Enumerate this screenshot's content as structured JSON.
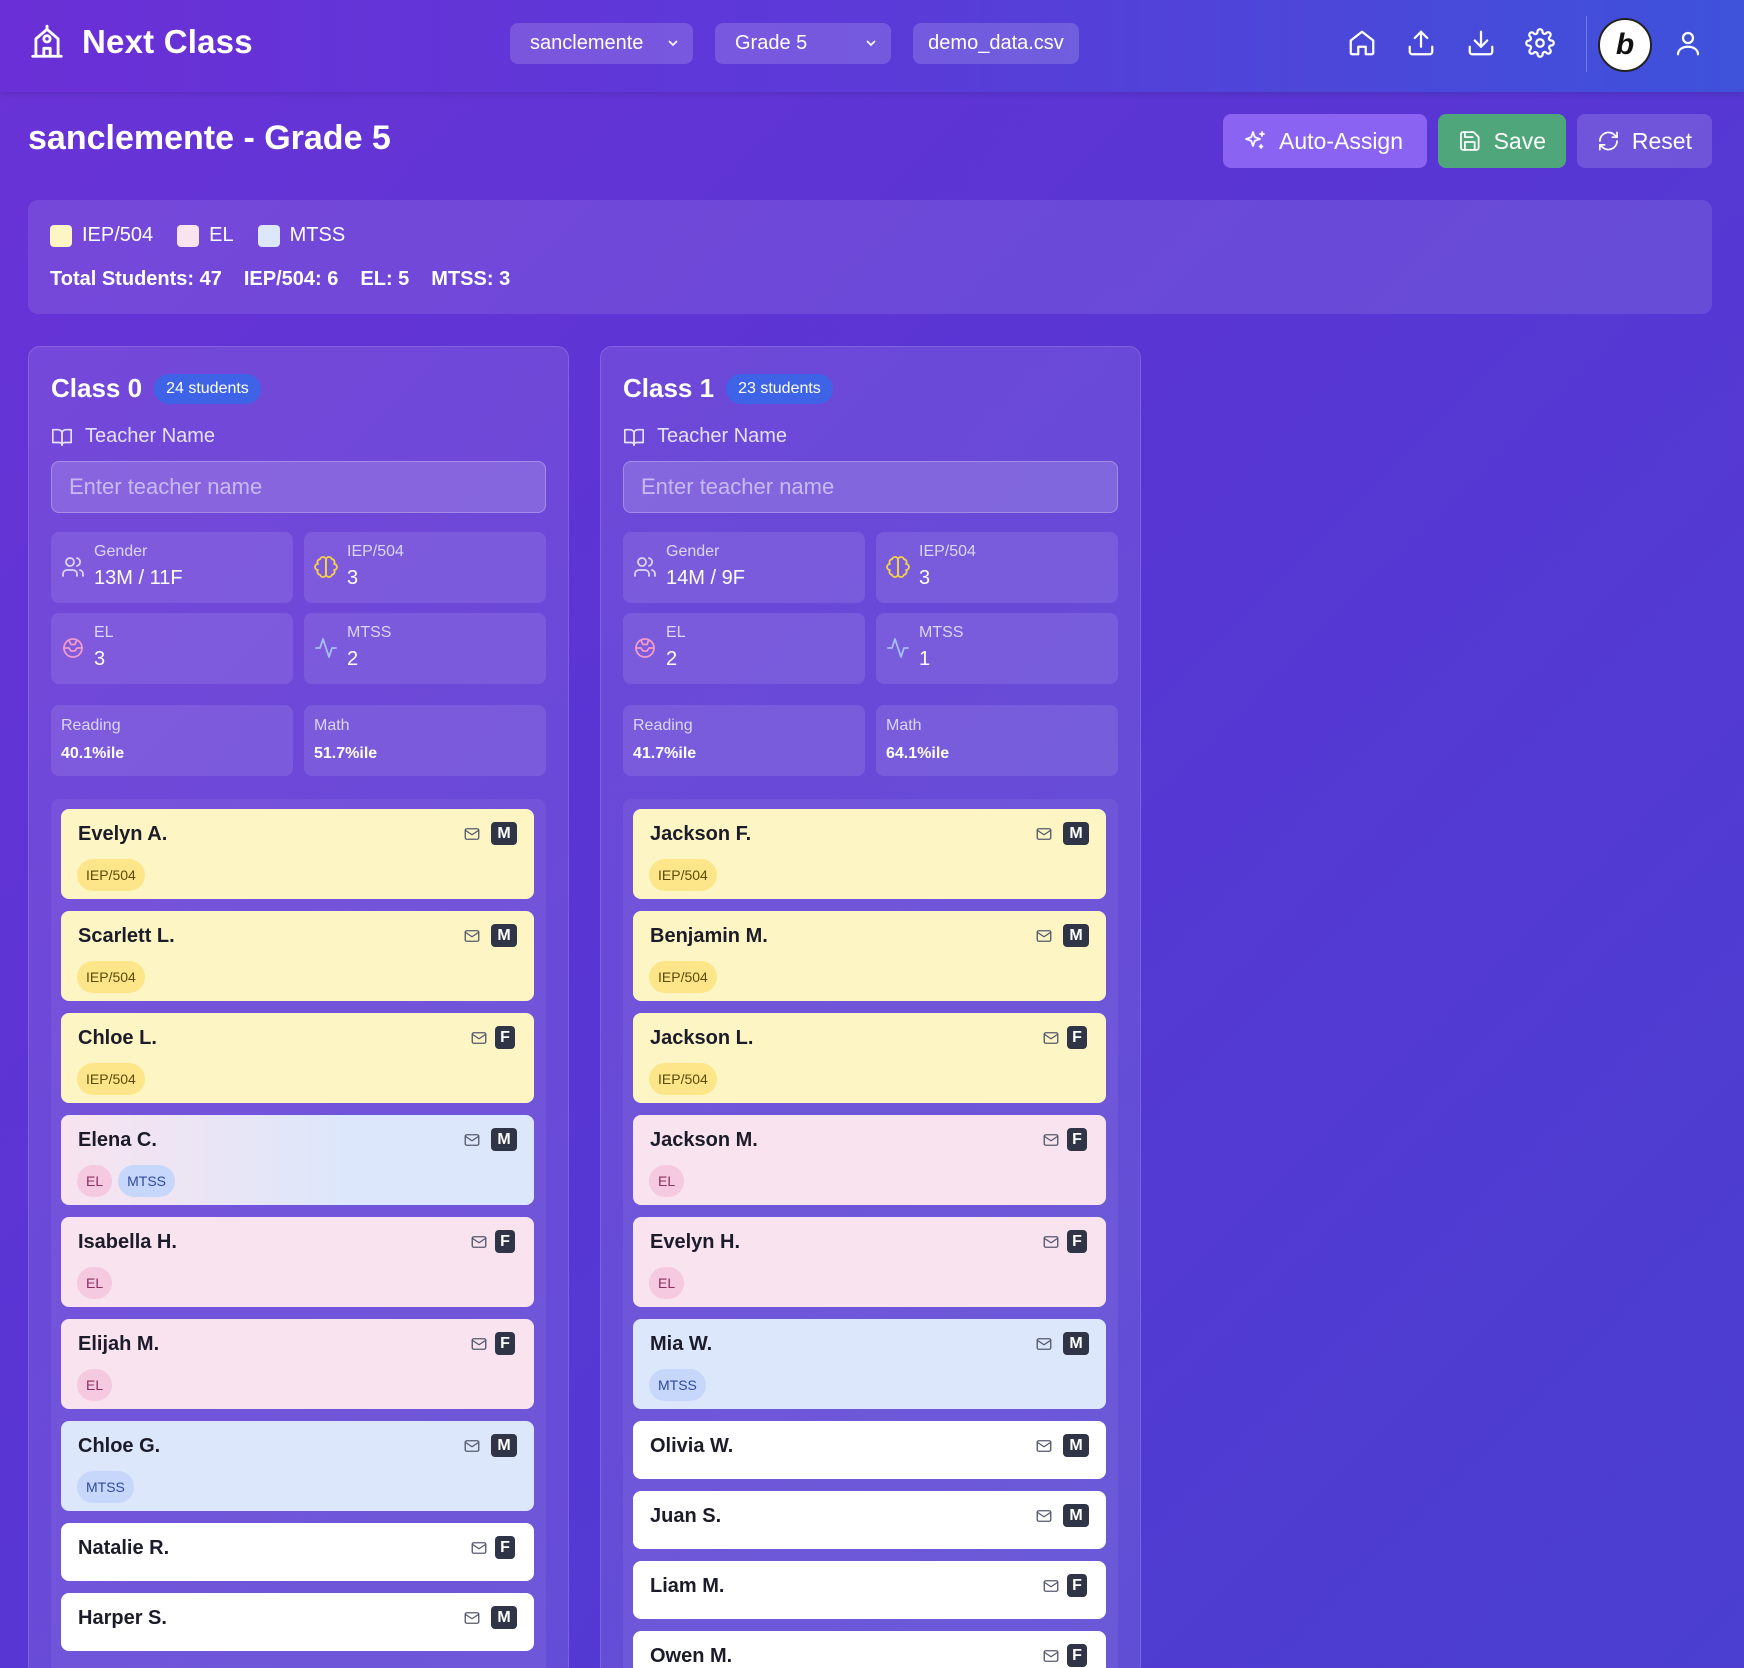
{
  "header": {
    "title": "Next Class",
    "school_select": "sanclemente",
    "grade_select": "Grade 5",
    "file_name": "demo_data.csv",
    "icons": [
      "home-icon",
      "upload-icon",
      "download-icon",
      "gear-icon",
      "bolt-badge",
      "user-icon"
    ],
    "badge_letter": "b"
  },
  "page": {
    "title": "sanclemente - Grade 5",
    "actions": {
      "auto_assign": "Auto-Assign",
      "save": "Save",
      "reset": "Reset"
    }
  },
  "summary": {
    "legend": [
      {
        "label": "IEP/504",
        "color": "#fdf6c4"
      },
      {
        "label": "EL",
        "color": "#f8e3ef"
      },
      {
        "label": "MTSS",
        "color": "#dde7fb"
      }
    ],
    "totals": [
      "Total Students: 47",
      "IEP/504: 6",
      "EL: 5",
      "MTSS: 3"
    ]
  },
  "classes": [
    {
      "title": "Class 0",
      "count": "24 students",
      "teacher_label": "Teacher Name",
      "teacher_placeholder": "Enter teacher name",
      "stats": {
        "gender": {
          "label": "Gender",
          "value": "13M / 11F"
        },
        "iep": {
          "label": "IEP/504",
          "value": "3"
        },
        "el": {
          "label": "EL",
          "value": "3"
        },
        "mtss": {
          "label": "MTSS",
          "value": "2"
        },
        "reading": {
          "label": "Reading",
          "value": "40.1%ile"
        },
        "math": {
          "label": "Math",
          "value": "51.7%ile"
        }
      },
      "students": [
        {
          "name": "Evelyn A.",
          "gender": "M",
          "tags": [
            "IEP/504"
          ]
        },
        {
          "name": "Scarlett L.",
          "gender": "M",
          "tags": [
            "IEP/504"
          ]
        },
        {
          "name": "Chloe L.",
          "gender": "F",
          "tags": [
            "IEP/504"
          ]
        },
        {
          "name": "Elena C.",
          "gender": "M",
          "tags": [
            "EL",
            "MTSS"
          ]
        },
        {
          "name": "Isabella H.",
          "gender": "F",
          "tags": [
            "EL"
          ]
        },
        {
          "name": "Elijah M.",
          "gender": "F",
          "tags": [
            "EL"
          ]
        },
        {
          "name": "Chloe G.",
          "gender": "M",
          "tags": [
            "MTSS"
          ]
        },
        {
          "name": "Natalie R.",
          "gender": "F",
          "tags": []
        },
        {
          "name": "Harper S.",
          "gender": "M",
          "tags": []
        }
      ]
    },
    {
      "title": "Class 1",
      "count": "23 students",
      "teacher_label": "Teacher Name",
      "teacher_placeholder": "Enter teacher name",
      "stats": {
        "gender": {
          "label": "Gender",
          "value": "14M / 9F"
        },
        "iep": {
          "label": "IEP/504",
          "value": "3"
        },
        "el": {
          "label": "EL",
          "value": "2"
        },
        "mtss": {
          "label": "MTSS",
          "value": "1"
        },
        "reading": {
          "label": "Reading",
          "value": "41.7%ile"
        },
        "math": {
          "label": "Math",
          "value": "64.1%ile"
        }
      },
      "students": [
        {
          "name": "Jackson F.",
          "gender": "M",
          "tags": [
            "IEP/504"
          ]
        },
        {
          "name": "Benjamin M.",
          "gender": "M",
          "tags": [
            "IEP/504"
          ]
        },
        {
          "name": "Jackson L.",
          "gender": "F",
          "tags": [
            "IEP/504"
          ]
        },
        {
          "name": "Jackson M.",
          "gender": "F",
          "tags": [
            "EL"
          ]
        },
        {
          "name": "Evelyn H.",
          "gender": "F",
          "tags": [
            "EL"
          ]
        },
        {
          "name": "Mia W.",
          "gender": "M",
          "tags": [
            "MTSS"
          ]
        },
        {
          "name": "Olivia W.",
          "gender": "M",
          "tags": []
        },
        {
          "name": "Juan S.",
          "gender": "M",
          "tags": []
        },
        {
          "name": "Liam M.",
          "gender": "F",
          "tags": []
        },
        {
          "name": "Owen M.",
          "gender": "F",
          "tags": []
        }
      ]
    }
  ]
}
